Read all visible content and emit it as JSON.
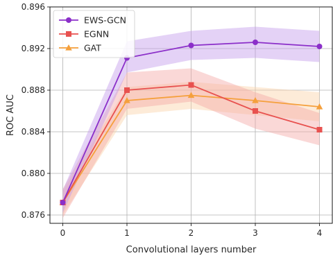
{
  "chart_data": {
    "type": "line",
    "title": "",
    "xlabel": "Convolutional layers number",
    "ylabel": "ROC AUC",
    "x": [
      0,
      1,
      2,
      3,
      4
    ],
    "xlim": [
      -0.2,
      4.2
    ],
    "ylim": [
      0.8752,
      0.896
    ],
    "xticks": [
      "0",
      "1",
      "2",
      "3",
      "4"
    ],
    "yticks": [
      "0.876",
      "0.880",
      "0.884",
      "0.888",
      "0.892",
      "0.896"
    ],
    "grid": true,
    "legend_position": "top-left",
    "series": [
      {
        "name": "EWS-GCN",
        "color": "#8b2fc9",
        "band_color": "#c39bec",
        "marker": "circle",
        "values": [
          0.8772,
          0.8911,
          0.8923,
          0.8926,
          0.8922
        ],
        "lower": [
          0.8762,
          0.8897,
          0.8909,
          0.8911,
          0.8907
        ],
        "upper": [
          0.8784,
          0.8927,
          0.8937,
          0.8941,
          0.8937
        ]
      },
      {
        "name": "EGNN",
        "color": "#e8514f",
        "band_color": "#f4a9a7",
        "marker": "square",
        "values": [
          0.8772,
          0.888,
          0.8885,
          0.886,
          0.8842
        ],
        "lower": [
          0.8757,
          0.8862,
          0.8869,
          0.8843,
          0.8827
        ],
        "upper": [
          0.8785,
          0.8897,
          0.8901,
          0.8878,
          0.8858
        ]
      },
      {
        "name": "GAT",
        "color": "#f5a03c",
        "band_color": "#fbd3a8",
        "marker": "triangle",
        "values": [
          0.8772,
          0.887,
          0.8875,
          0.887,
          0.8864
        ],
        "lower": [
          0.876,
          0.8856,
          0.8862,
          0.8856,
          0.885
        ],
        "upper": [
          0.8783,
          0.8883,
          0.8888,
          0.8883,
          0.8878
        ]
      }
    ]
  }
}
